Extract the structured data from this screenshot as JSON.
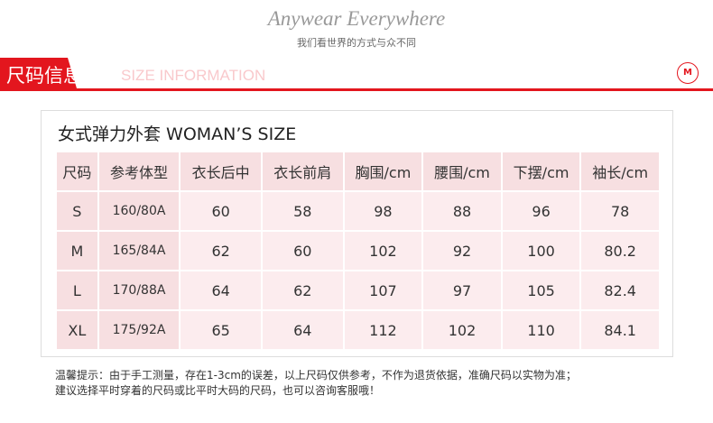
{
  "header": {
    "slogan": "Anywear Everywhere",
    "subtitle": "我们看世界的方式与众不同"
  },
  "section": {
    "title_cn": "尺码信息",
    "title_en": "SIZE INFORMATION",
    "logo_text": "M"
  },
  "table": {
    "title": "女式弹力外套 WOMAN’S SIZE",
    "headers": [
      "尺码",
      "参考体型",
      "衣长后中",
      "衣长前肩",
      "胸围/cm",
      "腰围/cm",
      "下摆/cm",
      "袖长/cm"
    ],
    "rows": [
      [
        "S",
        "160/80A",
        "60",
        "58",
        "98",
        "88",
        "96",
        "78"
      ],
      [
        "M",
        "165/84A",
        "62",
        "60",
        "102",
        "92",
        "100",
        "80.2"
      ],
      [
        "L",
        "170/88A",
        "64",
        "62",
        "107",
        "97",
        "105",
        "82.4"
      ],
      [
        "XL",
        "175/92A",
        "65",
        "64",
        "112",
        "102",
        "110",
        "84.1"
      ]
    ]
  },
  "notes": [
    "温馨提示：由于手工测量，存在1-3cm的误差，以上尺码仅供参考，不作为退货依据，准确尺码以实物为准；",
    "建议选择平时穿着的尺码或比平时大码的尺码，也可以咨询客服哦！"
  ]
}
